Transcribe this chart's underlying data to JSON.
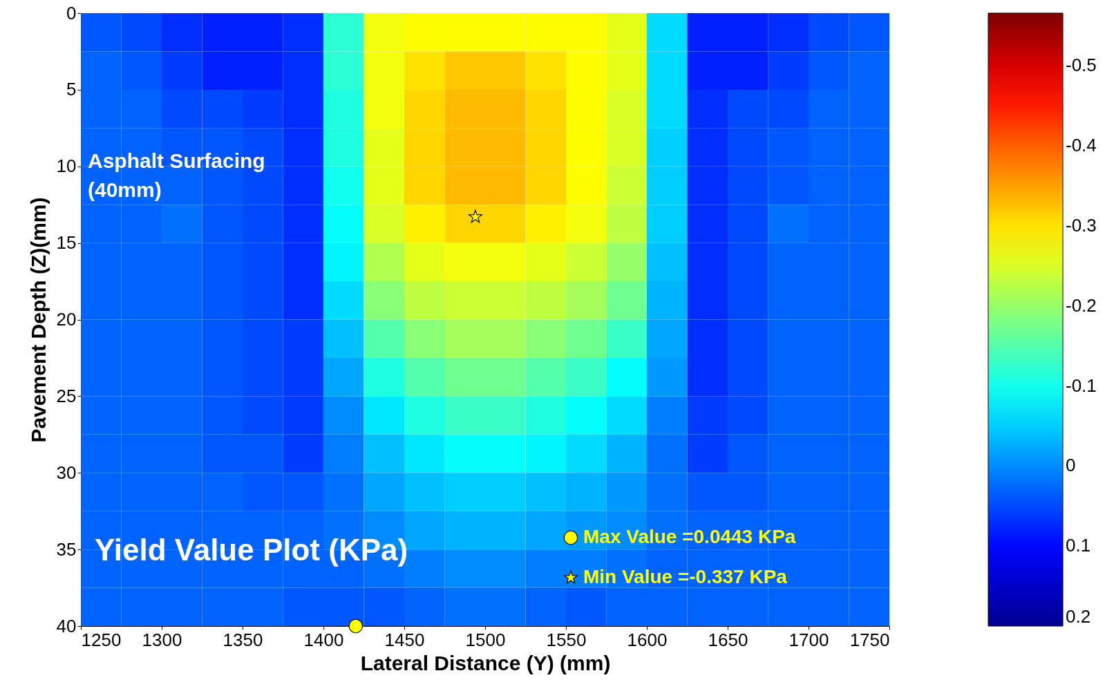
{
  "chart_data": {
    "type": "heatmap",
    "xlabel": "Lateral Distance (Y) (mm)",
    "ylabel": "Pavement Depth (Z)(mm)",
    "xlim": [
      1250,
      1750
    ],
    "xticks": [
      1250,
      1300,
      1350,
      1400,
      1450,
      1500,
      1550,
      1600,
      1650,
      1700,
      1750
    ],
    "ylim": [
      40,
      0
    ],
    "yticks": [
      0,
      5,
      10,
      15,
      20,
      25,
      30,
      35,
      40
    ],
    "clim": [
      0.2,
      -0.566
    ],
    "cticks": [
      -0.5,
      -0.4,
      -0.3,
      -0.2,
      -0.1,
      0,
      0.1,
      0.2
    ],
    "cells": [
      [
        0.04,
        0.05,
        0.07,
        0.08,
        0.08,
        0.07,
        -0.12,
        -0.27,
        -0.28,
        -0.28,
        -0.28,
        -0.28,
        -0.28,
        -0.26,
        -0.06,
        0.08,
        0.08,
        0.07,
        0.05,
        0.04
      ],
      [
        0.03,
        0.04,
        0.06,
        0.08,
        0.08,
        0.07,
        -0.12,
        -0.27,
        -0.3,
        -0.32,
        -0.32,
        -0.3,
        -0.28,
        -0.26,
        -0.06,
        0.08,
        0.08,
        0.06,
        0.04,
        0.03
      ],
      [
        0.03,
        0.03,
        0.05,
        0.05,
        0.06,
        0.07,
        -0.11,
        -0.27,
        -0.31,
        -0.33,
        -0.33,
        -0.31,
        -0.28,
        -0.25,
        -0.06,
        0.07,
        0.05,
        0.05,
        0.03,
        0.03
      ],
      [
        0.03,
        0.03,
        0.04,
        0.04,
        0.05,
        0.07,
        -0.11,
        -0.26,
        -0.31,
        -0.33,
        -0.33,
        -0.31,
        -0.28,
        -0.25,
        -0.05,
        0.07,
        0.05,
        0.04,
        0.03,
        0.03
      ],
      [
        0.03,
        0.03,
        0.03,
        0.04,
        0.05,
        0.07,
        -0.1,
        -0.26,
        -0.31,
        -0.33,
        -0.33,
        -0.31,
        -0.28,
        -0.24,
        -0.05,
        0.07,
        0.05,
        0.04,
        0.03,
        0.03
      ],
      [
        0.03,
        0.03,
        0.02,
        0.04,
        0.05,
        0.07,
        -0.09,
        -0.25,
        -0.29,
        -0.31,
        -0.31,
        -0.29,
        -0.27,
        -0.23,
        -0.05,
        0.07,
        0.05,
        0.02,
        0.03,
        0.03
      ],
      [
        0.03,
        0.03,
        0.03,
        0.04,
        0.05,
        0.07,
        -0.08,
        -0.22,
        -0.26,
        -0.27,
        -0.27,
        -0.26,
        -0.24,
        -0.2,
        -0.04,
        0.07,
        0.05,
        0.03,
        0.03,
        0.03
      ],
      [
        0.03,
        0.03,
        0.03,
        0.04,
        0.05,
        0.07,
        -0.06,
        -0.19,
        -0.23,
        -0.24,
        -0.24,
        -0.23,
        -0.21,
        -0.17,
        -0.03,
        0.07,
        0.05,
        0.03,
        0.03,
        0.03
      ],
      [
        0.03,
        0.03,
        0.03,
        0.04,
        0.05,
        0.06,
        -0.04,
        -0.15,
        -0.19,
        -0.21,
        -0.21,
        -0.19,
        -0.17,
        -0.13,
        -0.02,
        0.07,
        0.05,
        0.03,
        0.03,
        0.03
      ],
      [
        0.03,
        0.03,
        0.03,
        0.04,
        0.05,
        0.06,
        -0.02,
        -0.11,
        -0.15,
        -0.17,
        -0.17,
        -0.15,
        -0.13,
        -0.09,
        -0.01,
        0.07,
        0.05,
        0.03,
        0.03,
        0.03
      ],
      [
        0.03,
        0.03,
        0.03,
        0.04,
        0.05,
        0.06,
        0.0,
        -0.07,
        -0.11,
        -0.13,
        -0.13,
        -0.11,
        -0.09,
        -0.06,
        0.01,
        0.06,
        0.05,
        0.03,
        0.03,
        0.03
      ],
      [
        0.03,
        0.03,
        0.03,
        0.04,
        0.04,
        0.06,
        0.01,
        -0.04,
        -0.07,
        -0.09,
        -0.09,
        -0.08,
        -0.06,
        -0.03,
        0.02,
        0.06,
        0.04,
        0.03,
        0.03,
        0.03
      ],
      [
        0.03,
        0.03,
        0.03,
        0.03,
        0.04,
        0.04,
        0.02,
        -0.02,
        -0.04,
        -0.05,
        -0.05,
        -0.04,
        -0.03,
        -0.01,
        0.02,
        0.04,
        0.04,
        0.03,
        0.03,
        0.03
      ],
      [
        0.03,
        0.03,
        0.03,
        0.03,
        0.03,
        0.03,
        0.02,
        0.0,
        -0.02,
        -0.03,
        -0.03,
        -0.02,
        -0.01,
        0.0,
        0.02,
        0.03,
        0.03,
        0.03,
        0.03,
        0.03
      ],
      [
        0.03,
        0.03,
        0.03,
        0.03,
        0.03,
        0.03,
        0.03,
        0.02,
        0.01,
        0.0,
        0.0,
        0.01,
        0.01,
        0.02,
        0.03,
        0.03,
        0.03,
        0.03,
        0.03,
        0.03
      ],
      [
        0.03,
        0.03,
        0.03,
        0.03,
        0.03,
        0.04,
        0.04,
        0.04,
        0.03,
        0.02,
        0.02,
        0.03,
        0.04,
        0.03,
        0.03,
        0.03,
        0.03,
        0.03,
        0.03,
        0.03
      ]
    ],
    "series": [
      {
        "name": "Max Value =0.0443 KPa",
        "type": "scatter",
        "marker": "circle",
        "color": "#ffff00",
        "x": [
          1420
        ],
        "values": [
          40
        ]
      },
      {
        "name": "Min Value =-0.337 KPa",
        "type": "scatter",
        "marker": "star",
        "color": "#ffff00",
        "x": [
          1494
        ],
        "values": [
          13.3
        ]
      }
    ],
    "legend": "bottom right",
    "annotations": [
      "Asphalt Surfacing\n (40mm)",
      "Yield Value Plot (KPa)"
    ]
  }
}
